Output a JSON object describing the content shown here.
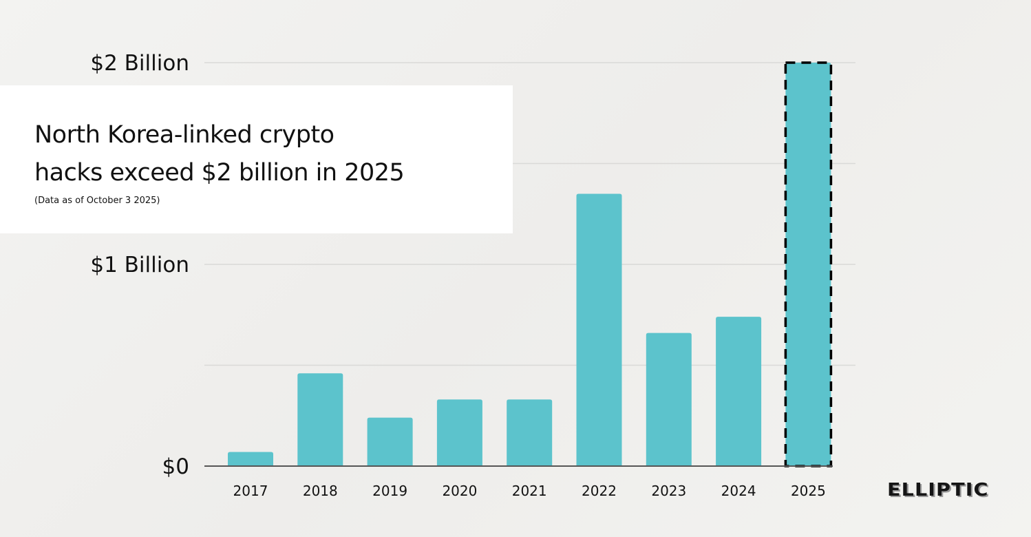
{
  "title": "North Korea-linked crypto hacks exceed $2 billion in 2025",
  "title_lines": [
    "North Korea-linked crypto",
    "hacks exceed $2 billion in 2025"
  ],
  "subtitle": "(Data as of October 3 2025)",
  "logo": "ELLIPTIC",
  "chart_data": {
    "type": "bar",
    "title": "North Korea-linked crypto hacks exceed $2 billion in 2025",
    "categories": [
      "2017",
      "2018",
      "2019",
      "2020",
      "2021",
      "2022",
      "2023",
      "2024",
      "2025"
    ],
    "values": [
      0.07,
      0.46,
      0.24,
      0.33,
      0.33,
      1.35,
      0.66,
      0.74,
      2.0
    ],
    "value_unit": "billion USD",
    "ylim": [
      0,
      2
    ],
    "yticks": [
      {
        "value": 0,
        "label": "$0"
      },
      {
        "value": 1,
        "label": "$1 Billion"
      },
      {
        "value": 2,
        "label": "$2 Billion"
      }
    ],
    "gridlines": [
      0,
      0.5,
      1,
      1.5,
      2
    ],
    "grid": true,
    "highlight": {
      "category": "2025",
      "style": "dashed-outline"
    },
    "colors": {
      "bar": "#5cc3cc",
      "grid": "#d9d9d7",
      "axis": "#555555",
      "outline": "#000000"
    }
  }
}
